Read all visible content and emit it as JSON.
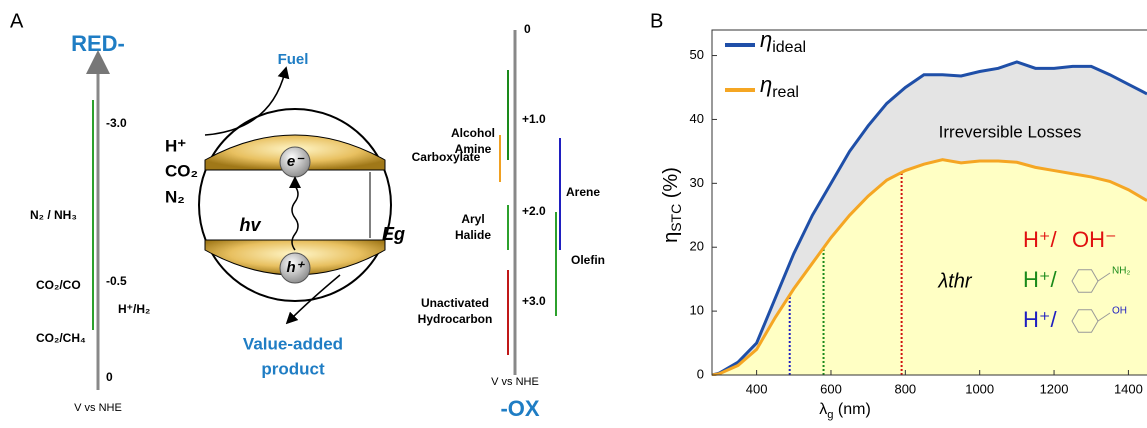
{
  "panel_a": {
    "label": "A",
    "red": "RED-",
    "ox": "-OX",
    "left_scale": {
      "ticks": [
        "-3.0",
        "-0.5",
        "0"
      ],
      "unit": "V vs NHE",
      "couples": [
        "N₂ / NH₃",
        "CO₂/CO",
        "H⁺/H₂",
        "CO₂/CH₄"
      ]
    },
    "center": {
      "top": "Fuel",
      "reactants": [
        "H⁺",
        "CO₂",
        "N₂"
      ],
      "electron": "e⁻",
      "hole": "h⁺",
      "photon": "hv",
      "gap": "Eg",
      "bottom": [
        "Value-added",
        "product"
      ]
    },
    "right_scale": {
      "ticks": [
        "0",
        "+1.0",
        "+2.0",
        "+3.0"
      ],
      "unit": "V vs NHE",
      "groups": [
        [
          "Alcohol",
          "Amine"
        ],
        [
          "Carboxylate"
        ],
        [
          "Arene"
        ],
        [
          "Aryl",
          "Halide"
        ],
        [
          "Olefin"
        ],
        [
          "Unactivated",
          "Hydrocarbon"
        ]
      ]
    }
  },
  "chart_data": {
    "type": "line",
    "panel": "B",
    "x_label": {
      "symbol": "λ",
      "sub": "g",
      "unit": " (nm)"
    },
    "y_label": {
      "symbol": "η",
      "sub": "STC",
      "unit": " (%)"
    },
    "legend_symbol": "η",
    "x": [
      280,
      300,
      350,
      400,
      450,
      500,
      550,
      600,
      650,
      700,
      750,
      800,
      850,
      900,
      950,
      1000,
      1050,
      1100,
      1150,
      1200,
      1250,
      1300,
      1350,
      1400,
      1450
    ],
    "series": [
      {
        "name": "ideal",
        "color": "#1f4fa8",
        "values": [
          0,
          0.3,
          2,
          5,
          12,
          19,
          25,
          30,
          35,
          39,
          42.5,
          45,
          47,
          47,
          46.8,
          47.5,
          48,
          49,
          48,
          48,
          48.3,
          48.3,
          47,
          45.5,
          44
        ]
      },
      {
        "name": "real",
        "color": "#f5a623",
        "values": [
          0,
          0.2,
          1.5,
          4,
          9,
          13.5,
          17.5,
          21.5,
          25,
          28,
          30.5,
          32,
          33,
          33.7,
          33.2,
          33.5,
          33.5,
          33.3,
          32.5,
          32,
          31.5,
          31,
          30.3,
          29,
          27.3
        ]
      }
    ],
    "thresholds": [
      {
        "x": 489,
        "color": "#1f1fc0"
      },
      {
        "x": 580,
        "color": "#1a8a1a"
      },
      {
        "x": 790,
        "color": "#d01010"
      }
    ],
    "xlim": [
      280,
      1450
    ],
    "ylim": [
      0,
      54
    ],
    "xticks": [
      400,
      600,
      800,
      1000,
      1200,
      1400
    ],
    "yticks": [
      0,
      10,
      20,
      30,
      40,
      50
    ],
    "annotations": {
      "losses": "Irreversible Losses",
      "lambda": "λthr",
      "pairs": [
        {
          "a": "H⁺/ ",
          "b": "OH⁻",
          "color": "#e01010"
        },
        {
          "a": "H⁺/",
          "b": "NH₂",
          "color": "#1a8a1a"
        },
        {
          "a": "H⁺/",
          "b": "OH",
          "color": "#1f1fc0"
        }
      ]
    }
  }
}
